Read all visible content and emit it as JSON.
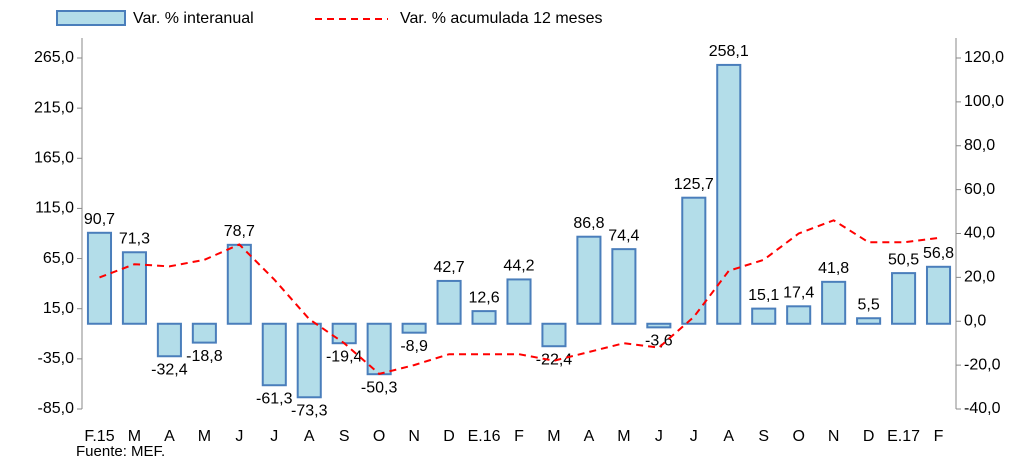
{
  "chart_data": {
    "type": "bar_line",
    "categories": [
      "F.15",
      "M",
      "A",
      "M",
      "J",
      "J",
      "A",
      "S",
      "O",
      "N",
      "D",
      "E.16",
      "F",
      "M",
      "A",
      "M",
      "J",
      "J",
      "A",
      "S",
      "O",
      "N",
      "D",
      "E.17",
      "F"
    ],
    "series": [
      {
        "name": "Var. % interanual",
        "type": "bar",
        "color": "#b3dde9",
        "stroke": "#4a7ebb",
        "values": [
          90.7,
          71.3,
          -32.4,
          -18.8,
          78.7,
          -61.3,
          -73.3,
          -19.4,
          -50.3,
          -8.9,
          42.7,
          12.6,
          44.2,
          -22.4,
          86.8,
          74.4,
          -3.6,
          125.7,
          258.1,
          15.1,
          17.4,
          41.8,
          5.5,
          50.5,
          56.8
        ],
        "value_labels": [
          "90,7",
          "71,3",
          "-32,4",
          "-18,8",
          "78,7",
          "-61,3",
          "-73,3",
          "-19,4",
          "-50,3",
          "-8,9",
          "42,7",
          "12,6",
          "44,2",
          "-22,4",
          "86,8",
          "74,4",
          "-3,6",
          "125,7",
          "258,1",
          "15,1",
          "17,4",
          "41,8",
          "5,5",
          "50,5",
          "56,8"
        ]
      },
      {
        "name": "Var. % acumulada 12 meses",
        "type": "line",
        "color": "#ff0000",
        "axis": "y2",
        "values": [
          20,
          26,
          25,
          28,
          35,
          19,
          1,
          -10,
          -24,
          -20,
          -15,
          -15,
          -15,
          -18,
          -14,
          -10,
          -12,
          2,
          23,
          28,
          40,
          46,
          36,
          36,
          38
        ]
      }
    ],
    "ylim": [
      -85,
      265
    ],
    "yticks": [
      {
        "value": -85,
        "label": "-85,0"
      },
      {
        "value": -35,
        "label": "-35,0"
      },
      {
        "value": 15,
        "label": "15,0"
      },
      {
        "value": 65,
        "label": "65,0"
      },
      {
        "value": 115,
        "label": "115,0"
      },
      {
        "value": 165,
        "label": "165,0"
      },
      {
        "value": 215,
        "label": "215,0"
      },
      {
        "value": 265,
        "label": "265,0"
      }
    ],
    "y2lim": [
      -40,
      120
    ],
    "y2ticks": [
      {
        "value": -40,
        "label": "-40,0"
      },
      {
        "value": -20,
        "label": "-20,0"
      },
      {
        "value": 0,
        "label": "0,0"
      },
      {
        "value": 20,
        "label": "20,0"
      },
      {
        "value": 40,
        "label": "40,0"
      },
      {
        "value": 60,
        "label": "60,0"
      },
      {
        "value": 80,
        "label": "80,0"
      },
      {
        "value": 100,
        "label": "100,0"
      },
      {
        "value": 120,
        "label": "120,0"
      }
    ],
    "source": "Fuente: MEF."
  }
}
